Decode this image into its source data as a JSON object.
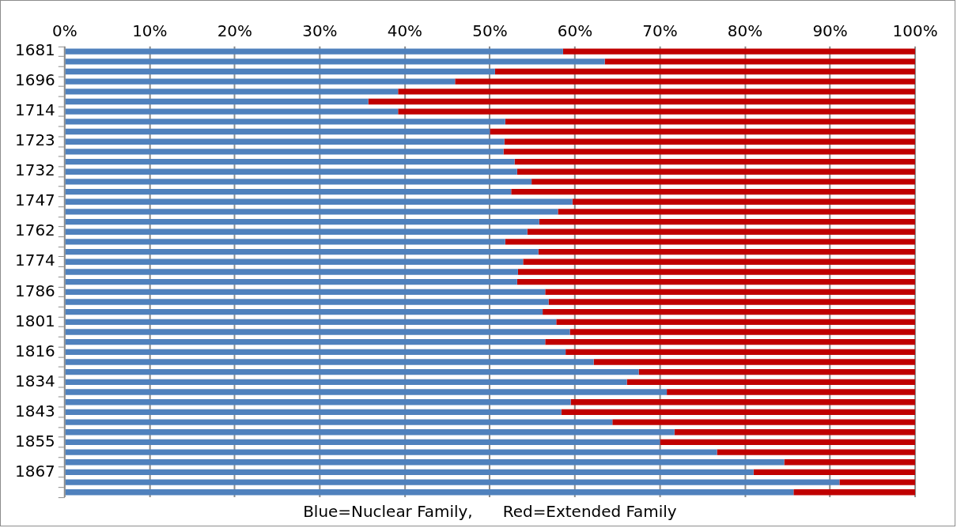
{
  "chart_data": {
    "type": "bar",
    "orientation": "horizontal",
    "stacked": true,
    "categories": [
      "1681",
      null,
      null,
      "1696",
      null,
      null,
      "1714",
      null,
      null,
      "1723",
      null,
      null,
      "1732",
      null,
      null,
      "1747",
      null,
      null,
      "1762",
      null,
      null,
      "1774",
      null,
      null,
      "1786",
      null,
      null,
      "1801",
      null,
      null,
      "1816",
      null,
      null,
      "1834",
      null,
      null,
      "1843",
      null,
      null,
      "1855",
      null,
      null,
      "1867",
      null,
      null
    ],
    "series": [
      {
        "color": "#4f81bd",
        "values": [
          58.6,
          63.5,
          50.6,
          45.9,
          39.2,
          35.7,
          39.2,
          51.8,
          50.0,
          51.7,
          51.6,
          52.9,
          53.2,
          54.9,
          52.5,
          59.7,
          58.0,
          55.8,
          54.4,
          51.8,
          55.7,
          53.9,
          53.3,
          53.2,
          56.5,
          56.9,
          56.2,
          57.8,
          59.4,
          56.5,
          58.9,
          62.2,
          67.5,
          66.1,
          70.8,
          59.5,
          58.4,
          64.4,
          71.7,
          70.0,
          76.7,
          84.6,
          81.0,
          91.1,
          85.7
        ]
      },
      {
        "color": "#c00000",
        "values": [
          41.4,
          36.5,
          49.4,
          54.1,
          60.8,
          64.3,
          60.8,
          48.2,
          50.0,
          48.3,
          48.4,
          47.1,
          46.8,
          45.1,
          47.5,
          40.3,
          42.0,
          44.2,
          45.6,
          48.2,
          44.3,
          46.1,
          46.7,
          46.8,
          43.5,
          43.1,
          43.8,
          42.2,
          40.6,
          43.5,
          41.1,
          37.8,
          32.5,
          33.9,
          29.2,
          40.5,
          41.6,
          35.6,
          28.3,
          30.0,
          23.3,
          15.4,
          19.0,
          8.9,
          14.3
        ]
      }
    ],
    "xlim": [
      0,
      100
    ],
    "xticks": [
      {
        "value": 0,
        "label": "0%"
      },
      {
        "value": 10,
        "label": "10%"
      },
      {
        "value": 20,
        "label": "20%"
      },
      {
        "value": 30,
        "label": "30%"
      },
      {
        "value": 40,
        "label": "40%"
      },
      {
        "value": 50,
        "label": "50%"
      },
      {
        "value": 60,
        "label": "60%"
      },
      {
        "value": 70,
        "label": "70%"
      },
      {
        "value": 80,
        "label": "80%"
      },
      {
        "value": 90,
        "label": "90%"
      },
      {
        "value": 100,
        "label": "100%"
      }
    ],
    "grid": "x",
    "annotations": [
      "Blue=Nuclear Family,      Red=Extended Family"
    ]
  }
}
